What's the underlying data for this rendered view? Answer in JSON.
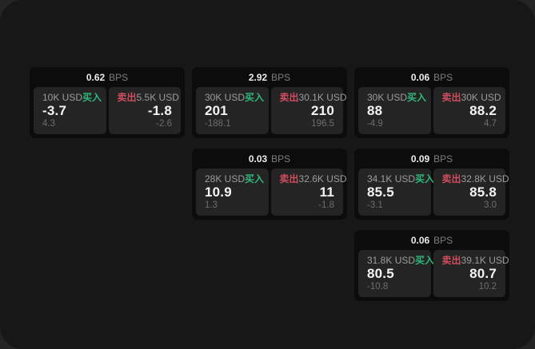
{
  "page": {
    "surface_color": "#171717",
    "backdrop_color": "#242424",
    "card_color": "#0c0c0c",
    "panel_color": "#242424"
  },
  "colors": {
    "buy": "#2eb87a",
    "sell": "#cf4d5e",
    "price_text": "#f4f4f4",
    "muted_text": "#9c9c9c",
    "faint_text": "#6d6d6d"
  },
  "labels": {
    "bps": "BPS",
    "buy": "买入",
    "sell": "卖出"
  },
  "cards": [
    {
      "row": 1,
      "col": 1,
      "bps": "0.62",
      "buy": {
        "size": "10K USD",
        "price": "-3.7",
        "delta": "4.3"
      },
      "sell": {
        "size": "5.5K USD",
        "price": "-1.8",
        "delta": "-2.6"
      }
    },
    {
      "row": 1,
      "col": 2,
      "bps": "2.92",
      "buy": {
        "size": "30K USD",
        "price": "201",
        "delta": "-188.1"
      },
      "sell": {
        "size": "30.1K USD",
        "price": "210",
        "delta": "196.5"
      }
    },
    {
      "row": 1,
      "col": 3,
      "bps": "0.06",
      "buy": {
        "size": "30K USD",
        "price": "88",
        "delta": "-4.9"
      },
      "sell": {
        "size": "30K USD",
        "price": "88.2",
        "delta": "4.7"
      }
    },
    {
      "row": 2,
      "col": 2,
      "bps": "0.03",
      "buy": {
        "size": "28K USD",
        "price": "10.9",
        "delta": "1.3"
      },
      "sell": {
        "size": "32.6K USD",
        "price": "11",
        "delta": "-1.8"
      }
    },
    {
      "row": 2,
      "col": 3,
      "bps": "0.09",
      "buy": {
        "size": "34.1K USD",
        "price": "85.5",
        "delta": "-3.1"
      },
      "sell": {
        "size": "32.8K USD",
        "price": "85.8",
        "delta": "3.0"
      }
    },
    {
      "row": 3,
      "col": 3,
      "bps": "0.06",
      "buy": {
        "size": "31.8K USD",
        "price": "80.5",
        "delta": "-10.8"
      },
      "sell": {
        "size": "39.1K USD",
        "price": "80.7",
        "delta": "10.2"
      }
    }
  ]
}
